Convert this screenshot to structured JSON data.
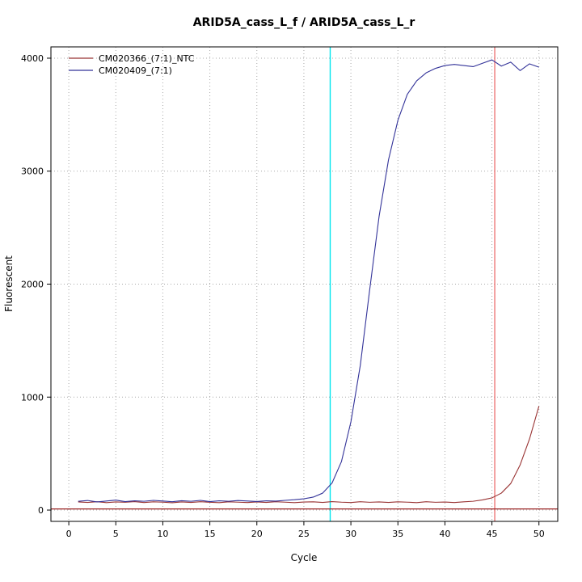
{
  "chart_data": {
    "type": "line",
    "title": "ARID5A_cass_L_f / ARID5A_cass_L_r",
    "xlabel": "Cycle",
    "ylabel": "Fluorescent",
    "x_range": [
      -1.9,
      52
    ],
    "y_range": [
      -100,
      4100
    ],
    "x_ticks": [
      0,
      5,
      10,
      15,
      20,
      25,
      30,
      35,
      40,
      45,
      50
    ],
    "y_ticks": [
      0,
      1000,
      2000,
      3000,
      4000
    ],
    "grid": true,
    "grid_color": "#a9a9a9",
    "box_color": "#000000",
    "legend_position": "top-left",
    "series": [
      {
        "name": "CM020366_(7:1)_NTC",
        "color": "#993333",
        "x_start": 1,
        "values": [
          72,
          68,
          74,
          66,
          72,
          69,
          75,
          67,
          73,
          70,
          65,
          72,
          68,
          74,
          69,
          66,
          73,
          70,
          67,
          72,
          68,
          74,
          70,
          66,
          71,
          73,
          68,
          75,
          70,
          67,
          74,
          69,
          72,
          68,
          73,
          70,
          66,
          74,
          69,
          71,
          67,
          73,
          78,
          90,
          108,
          150,
          235,
          400,
          630,
          920
        ]
      },
      {
        "name": "CM020409_(7:1)",
        "color": "#333399",
        "x_start": 1,
        "values": [
          78,
          85,
          72,
          80,
          88,
          75,
          82,
          78,
          86,
          80,
          74,
          83,
          78,
          86,
          75,
          82,
          78,
          85,
          80,
          76,
          82,
          79,
          86,
          92,
          100,
          115,
          150,
          240,
          430,
          780,
          1280,
          1950,
          2600,
          3100,
          3450,
          3680,
          3800,
          3870,
          3910,
          3935,
          3945,
          3935,
          3925,
          3955,
          3985,
          3930,
          3965,
          3890,
          3950,
          3920
        ]
      }
    ],
    "vlines": [
      {
        "name": "ct-line-sample",
        "x": 27.8,
        "color": "#00e5ee"
      },
      {
        "name": "ct-line-ntc",
        "x": 45.3,
        "color": "#ee7777"
      }
    ],
    "hlines": [
      {
        "name": "threshold-line",
        "y": 10,
        "color": "#992222"
      }
    ]
  }
}
